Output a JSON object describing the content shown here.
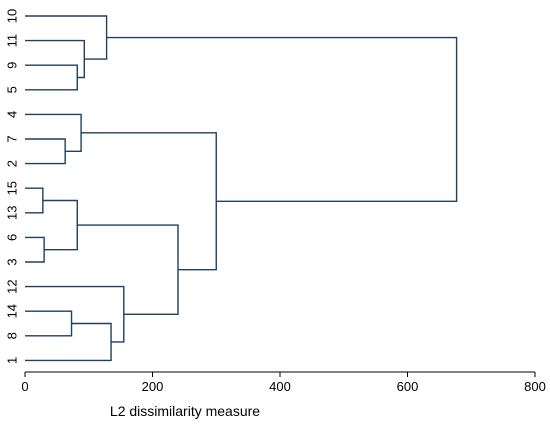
{
  "chart_data": {
    "type": "dendrogram",
    "orientation": "horizontal",
    "xlabel": "L2 dissimilarity measure",
    "xlim": [
      0,
      800
    ],
    "xticks": [
      0,
      200,
      400,
      600,
      800
    ],
    "leaf_order": [
      "10",
      "11",
      "9",
      "5",
      "4",
      "7",
      "2",
      "15",
      "13",
      "6",
      "3",
      "12",
      "14",
      "8",
      "1"
    ],
    "merges": [
      {
        "id": "c1",
        "left": "15",
        "right": "13",
        "height": 28
      },
      {
        "id": "c2",
        "left": "6",
        "right": "3",
        "height": 30
      },
      {
        "id": "c3",
        "left": "7",
        "right": "2",
        "height": 63
      },
      {
        "id": "c4",
        "left": "14",
        "right": "8",
        "height": 73
      },
      {
        "id": "c5",
        "left": "c1",
        "right": "c2",
        "height": 82
      },
      {
        "id": "c6",
        "left": "9",
        "right": "5",
        "height": 82
      },
      {
        "id": "c7",
        "left": "4",
        "right": "c3",
        "height": 88
      },
      {
        "id": "c8",
        "left": "11",
        "right": "c6",
        "height": 93
      },
      {
        "id": "c9",
        "left": "10",
        "right": "c8",
        "height": 128
      },
      {
        "id": "c10",
        "left": "c4",
        "right": "1",
        "height": 135
      },
      {
        "id": "c11",
        "left": "12",
        "right": "c10",
        "height": 155
      },
      {
        "id": "c12",
        "left": "c5",
        "right": "c11",
        "height": 240
      },
      {
        "id": "c13",
        "left": "c7",
        "right": "c12",
        "height": 300
      },
      {
        "id": "c14",
        "left": "c9",
        "right": "c13",
        "height": 677
      }
    ],
    "line_color": "#1f3f63",
    "axis_color": "#000000",
    "grid": false
  }
}
